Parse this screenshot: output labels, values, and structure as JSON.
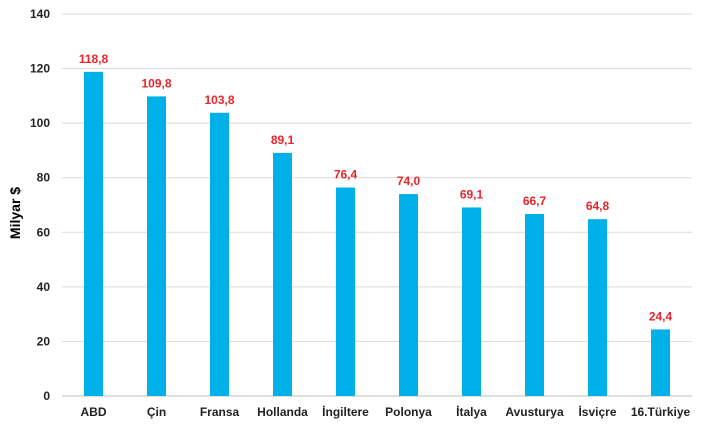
{
  "chart_data": {
    "type": "bar",
    "categories": [
      "ABD",
      "Çin",
      "Fransa",
      "Hollanda",
      "İngiltere",
      "Polonya",
      "İtalya",
      "Avusturya",
      "İsviçre",
      "16.Türkiye"
    ],
    "values": [
      118.8,
      109.8,
      103.8,
      89.1,
      76.4,
      74.0,
      69.1,
      66.7,
      64.8,
      24.4
    ],
    "value_labels": [
      "118,8",
      "109,8",
      "103,8",
      "89,1",
      "76,4",
      "74,0",
      "69,1",
      "66,7",
      "64,8",
      "24,4"
    ],
    "title": "",
    "xlabel": "",
    "ylabel": "Milyar $",
    "ylim": [
      0,
      140
    ],
    "yticks": [
      0,
      20,
      40,
      60,
      80,
      100,
      120,
      140
    ],
    "grid": true,
    "legend": "none",
    "colors": {
      "bar": "#00B0E8",
      "data_label": "#E8252A",
      "grid": "#D9D9D9",
      "axis": "#BFBFBF"
    }
  }
}
